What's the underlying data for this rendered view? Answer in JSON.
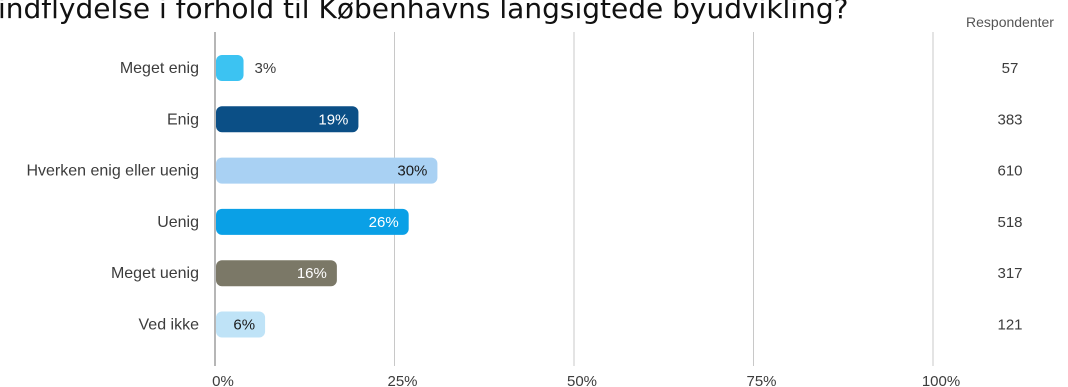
{
  "chart_data": {
    "type": "bar",
    "orientation": "horizontal",
    "title": "indflydelse i forhold til Københavns langsigtede byudvikling?",
    "categories": [
      "Meget enig",
      "Enig",
      "Hverken enig eller uenig",
      "Uenig",
      "Meget uenig",
      "Ved ikke"
    ],
    "values": [
      3,
      19,
      30,
      26,
      16,
      6
    ],
    "value_labels": [
      "3%",
      "19%",
      "30%",
      "26%",
      "16%",
      "6%"
    ],
    "respondents_header": "Respondenter",
    "respondents": [
      "57",
      "383",
      "610",
      "518",
      "317",
      "121"
    ],
    "colors": [
      "#3cc3f2",
      "#0b4f86",
      "#a9d1f3",
      "#0aa0e6",
      "#7b7867",
      "#bfe3f7"
    ],
    "label_colors": [
      "#3c3c3c",
      "#ffffff",
      "#1a1a1a",
      "#ffffff",
      "#ffffff",
      "#1a1a1a"
    ],
    "xlim": [
      0,
      100
    ],
    "xticks": [
      0,
      25,
      50,
      75,
      100
    ],
    "xtick_labels": [
      "0%",
      "25%",
      "50%",
      "75%",
      "100%"
    ],
    "grid": true
  }
}
